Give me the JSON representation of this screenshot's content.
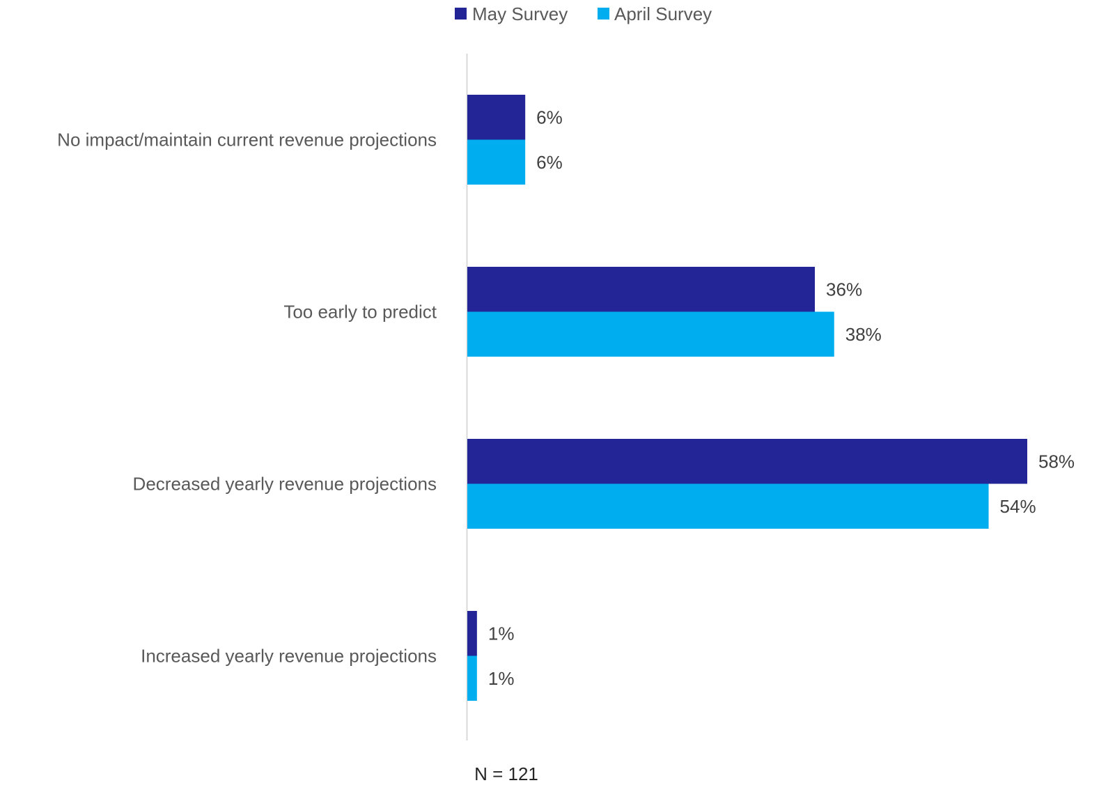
{
  "chart_data": {
    "type": "bar",
    "orientation": "horizontal",
    "categories": [
      "No impact/maintain current revenue projections",
      "Too early to predict",
      "Decreased yearly revenue projections",
      "Increased yearly revenue projections"
    ],
    "series": [
      {
        "name": "May Survey",
        "color": "#232495",
        "values": [
          6,
          36,
          58,
          1
        ],
        "labels": [
          "6%",
          "36%",
          "58%",
          "1%"
        ]
      },
      {
        "name": "April Survey",
        "color": "#00AEEF",
        "values": [
          6,
          38,
          54,
          1
        ],
        "labels": [
          "6%",
          "38%",
          "54%",
          "1%"
        ]
      }
    ],
    "xlim": [
      0,
      58
    ],
    "unit": "%",
    "grid": false,
    "legend_position": "top",
    "axis_line_color": "#D9D9D9",
    "title": "",
    "xlabel": "",
    "ylabel": ""
  },
  "note": "N = 121"
}
